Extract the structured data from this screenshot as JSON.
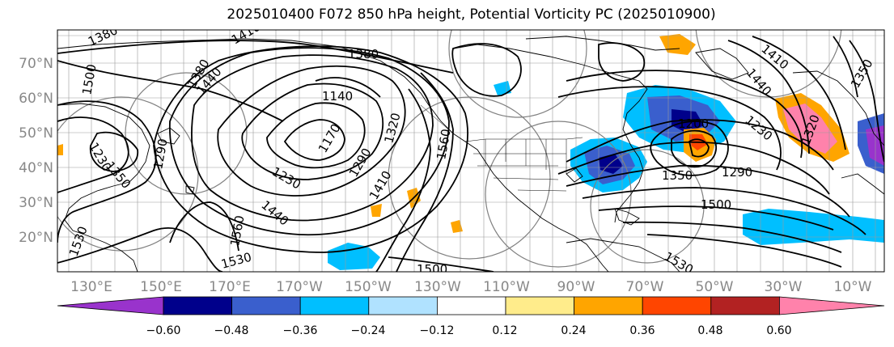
{
  "title": "2025010400 F072 850 hPa height, Potential Vorticity PC (2025010900)",
  "lon_ticks": [
    "130°E",
    "150°E",
    "170°E",
    "170°W",
    "150°W",
    "130°W",
    "110°W",
    "90°W",
    "70°W",
    "50°W",
    "30°W",
    "10°W"
  ],
  "lat_ticks": [
    "70°N",
    "60°N",
    "50°N",
    "40°N",
    "30°N",
    "20°N"
  ],
  "colorbar": {
    "ticks": [
      "−0.60",
      "−0.48",
      "−0.36",
      "−0.24",
      "−0.12",
      "0.12",
      "0.24",
      "0.36",
      "0.48",
      "0.60"
    ],
    "colors": [
      "#9933cc",
      "#00008b",
      "#3a5fcd",
      "#00bfff",
      "#b0e2ff",
      "#ffffff",
      "#ffec8b",
      "#ffa500",
      "#ff4500",
      "#b22222",
      "#ff82ab"
    ]
  },
  "contour_labels": [
    "1380",
    "1410",
    "1500",
    "1440",
    "1230",
    "1350",
    "1380",
    "1140",
    "1170",
    "1230",
    "1290",
    "1320",
    "1380",
    "1410",
    "1560",
    "1440",
    "1290",
    "1530",
    "1560",
    "1530",
    "1500",
    "1530",
    "1200",
    "1230",
    "1350",
    "1290",
    "1500",
    "1410",
    "1440",
    "1320",
    "1350"
  ]
}
